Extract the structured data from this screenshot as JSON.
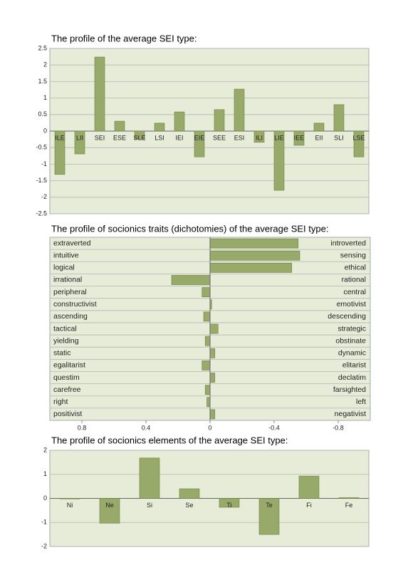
{
  "chart_data": [
    {
      "type": "bar",
      "title": "The profile of the average  SEI type:",
      "categories": [
        "ILE",
        "LII",
        "SEI",
        "ESE",
        "SLE",
        "LSI",
        "IEI",
        "EIE",
        "SEE",
        "ESI",
        "ILI",
        "LIE",
        "IEE",
        "EII",
        "SLI",
        "LSE"
      ],
      "values": [
        -1.31,
        -0.69,
        2.24,
        0.3,
        -0.24,
        0.24,
        0.58,
        -0.78,
        0.65,
        1.27,
        -0.34,
        -1.79,
        -0.43,
        0.24,
        0.8,
        -0.78
      ],
      "color": "#98aa6a",
      "ylim": [
        -2.5,
        2.5
      ],
      "yticks": [
        -2.5,
        -2,
        -1.5,
        -1,
        -0.5,
        0,
        0.5,
        1,
        1.5,
        2,
        2.5
      ],
      "grid": true
    },
    {
      "type": "hbar",
      "title": "The profile of socionics traits (dichotomies) of the average  SEI type:",
      "categories": [
        "extraverted",
        "intuitive",
        "logical",
        "irrational",
        "peripheral",
        "constructivist",
        "ascending",
        "tactical",
        "yielding",
        "static",
        "egalitarist",
        "questim",
        "carefree",
        "right",
        "positivist"
      ],
      "right_labels": [
        "introverted",
        "sensing",
        "ethical",
        "rational",
        "central",
        "emotivist",
        "descending",
        "strategic",
        "obstinate",
        "dynamic",
        "elitarist",
        "declatim",
        "farsighted",
        "left",
        "negativist"
      ],
      "values": [
        -0.55,
        -0.56,
        -0.51,
        0.24,
        0.05,
        -0.01,
        0.04,
        -0.05,
        0.03,
        -0.03,
        0.05,
        -0.03,
        0.03,
        0.02,
        -0.03
      ],
      "color": "#98aa6a",
      "xlim": [
        1,
        -1
      ],
      "xticks": [
        0.8,
        0.4,
        0,
        -0.4,
        -0.8
      ]
    },
    {
      "type": "bar",
      "title": "The profile of socionics elements of the average  SEI type:",
      "categories": [
        "Ni",
        "Ne",
        "Si",
        "Se",
        "Ti",
        "Te",
        "Fi",
        "Fe"
      ],
      "values": [
        -0.02,
        -1.03,
        1.68,
        0.4,
        -0.37,
        -1.5,
        0.93,
        0.03
      ],
      "color": "#98aa6a",
      "ylim": [
        -2,
        2
      ],
      "yticks": [
        -2,
        -1,
        0,
        1,
        2
      ],
      "grid": true
    }
  ]
}
